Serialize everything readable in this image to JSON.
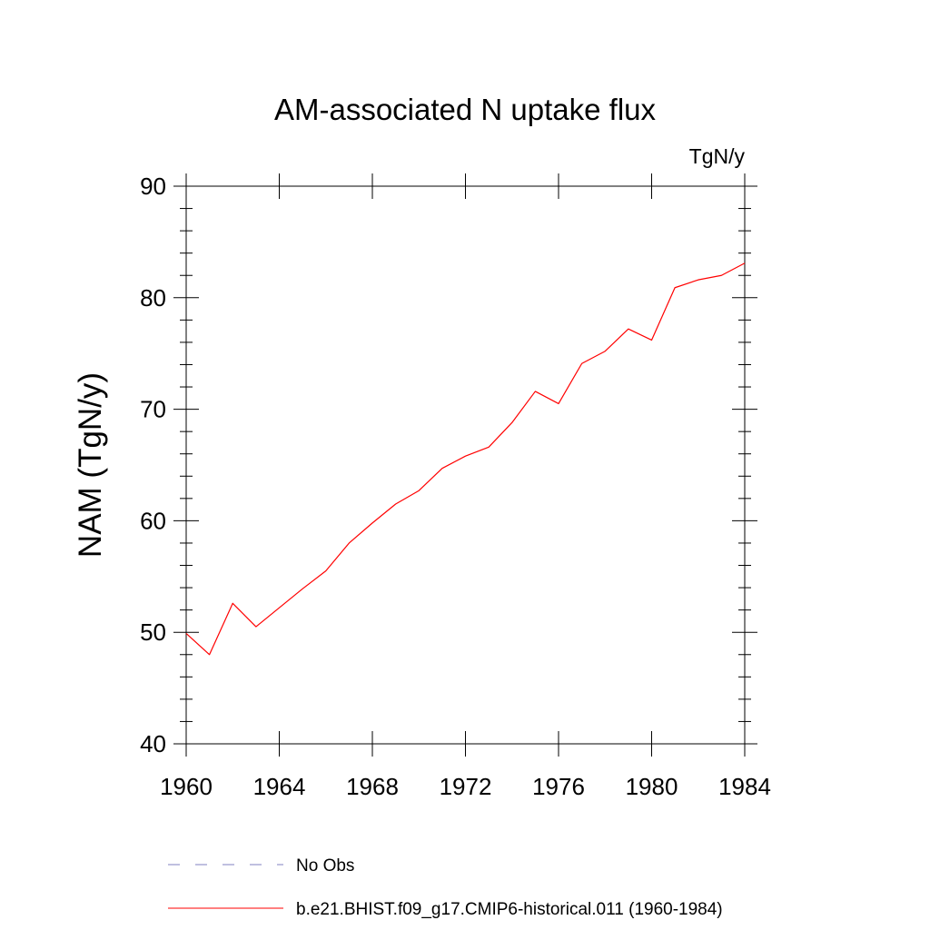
{
  "chart_data": {
    "type": "line",
    "title": "AM-associated N uptake flux",
    "units_label": "TgN/y",
    "xlabel": "",
    "ylabel": "NAM  (TgN/y)",
    "xlim": [
      1960,
      1984
    ],
    "ylim": [
      40,
      90
    ],
    "x_ticks": [
      1960,
      1964,
      1968,
      1972,
      1976,
      1980,
      1984
    ],
    "y_ticks": [
      40,
      50,
      60,
      70,
      80,
      90
    ],
    "grid": false,
    "legend_position": "bottom",
    "series": [
      {
        "name": "b.e21.BHIST.f09_g17.CMIP6-historical.011 (1960-1984)",
        "color": "#ff0000",
        "style": "solid",
        "x": [
          1960,
          1961,
          1962,
          1963,
          1964,
          1965,
          1966,
          1967,
          1968,
          1969,
          1970,
          1971,
          1972,
          1973,
          1974,
          1975,
          1976,
          1977,
          1978,
          1979,
          1980,
          1981,
          1982,
          1983,
          1984
        ],
        "y": [
          49.9,
          48.0,
          52.6,
          50.5,
          52.2,
          53.9,
          55.5,
          58.0,
          59.8,
          61.5,
          62.7,
          64.7,
          65.8,
          66.6,
          68.8,
          71.6,
          70.5,
          74.1,
          75.2,
          77.2,
          76.2,
          80.9,
          81.6,
          82.0,
          83.1
        ]
      }
    ],
    "legend": [
      {
        "label": "No Obs",
        "color": "#8080c0",
        "style": "dashed"
      },
      {
        "label": "b.e21.BHIST.f09_g17.CMIP6-historical.011 (1960-1984)",
        "color": "#ff0000",
        "style": "solid"
      }
    ]
  }
}
